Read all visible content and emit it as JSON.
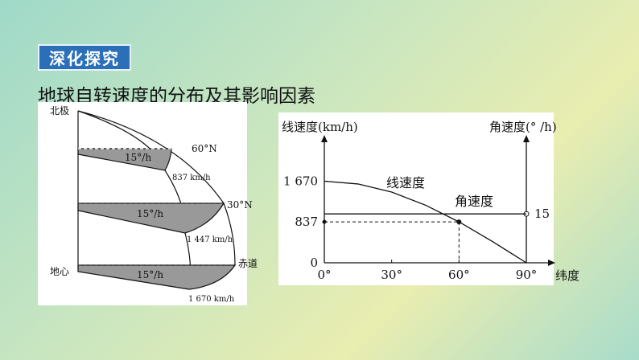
{
  "header": {
    "badge": "深化探究",
    "title": "地球自转速度的分布及其影响因素"
  },
  "diagram": {
    "labels": {
      "north_pole": "北极",
      "center": "地心",
      "lat60": "60°N",
      "lat30": "30°N",
      "equator": "赤道"
    },
    "angular": [
      "15°/h",
      "15°/h",
      "15°/h"
    ],
    "linear": [
      "837 km/h",
      "1 447 km/h",
      "1 670 km/h"
    ]
  },
  "chart_data": {
    "type": "line",
    "y_label": "线速度(km/h)",
    "y2_label": "角速度(° /h)",
    "x_label": "纬度",
    "x": [
      0,
      15,
      30,
      45,
      60,
      75,
      90
    ],
    "xlim": [
      0,
      90
    ],
    "xticks": [
      {
        "value": 0,
        "label": "0°"
      },
      {
        "value": 30,
        "label": "30°"
      },
      {
        "value": 60,
        "label": "60°"
      },
      {
        "value": 90,
        "label": "90°"
      }
    ],
    "ylim": [
      0,
      2500
    ],
    "yticks": [
      0,
      837,
      {
        "value": 1670,
        "label": "1 670"
      }
    ],
    "y2lim": [
      0,
      37.5
    ],
    "y2ticks": [
      15
    ],
    "series": [
      {
        "name": "线速度",
        "color": "#111111",
        "values": [
          1670,
          1613,
          1447,
          1181,
          837,
          432,
          0
        ]
      },
      {
        "name": "角速度",
        "color": "#111111",
        "axis": "y2",
        "values": [
          15,
          15,
          15,
          15,
          15,
          15,
          15
        ]
      }
    ]
  }
}
